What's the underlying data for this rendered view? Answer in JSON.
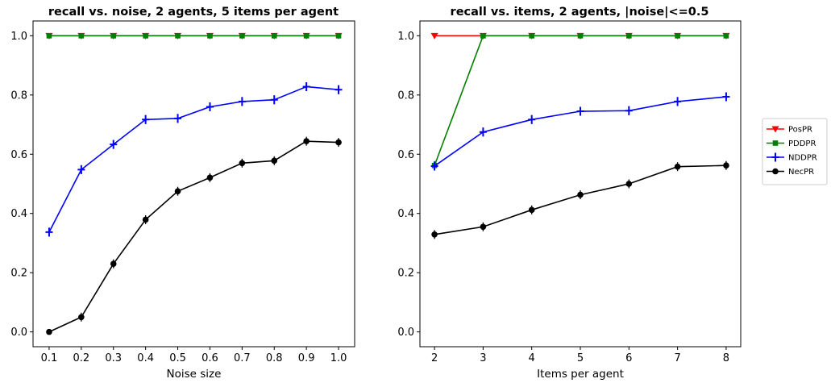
{
  "legend": {
    "entries": [
      {
        "label": "PosPR",
        "color": "#ff0000",
        "marker": "tri_down"
      },
      {
        "label": "PDDPR",
        "color": "#008000",
        "marker": "square"
      },
      {
        "label": "NDDPR",
        "color": "#0000ff",
        "marker": "plus"
      },
      {
        "label": "NecPR",
        "color": "#000000",
        "marker": "circle"
      }
    ]
  },
  "chart_data": [
    {
      "type": "line",
      "title": "recall vs. noise, 2 agents, 5 items per agent",
      "xlabel": "Noise size",
      "ylabel": "",
      "x": [
        0.1,
        0.2,
        0.3,
        0.4,
        0.5,
        0.6,
        0.7,
        0.8,
        0.9,
        1.0
      ],
      "x_ticks": [
        "0.1",
        "0.2",
        "0.3",
        "0.4",
        "0.5",
        "0.6",
        "0.7",
        "0.8",
        "0.9",
        "1.0"
      ],
      "y_ticks": [
        "0.0",
        "0.2",
        "0.4",
        "0.6",
        "0.8",
        "1.0"
      ],
      "xlim": [
        0.05,
        1.05
      ],
      "ylim": [
        -0.05,
        1.05
      ],
      "series": [
        {
          "name": "PosPR",
          "color": "#ff0000",
          "marker": "tri_down",
          "values": [
            1.0,
            1.0,
            1.0,
            1.0,
            1.0,
            1.0,
            1.0,
            1.0,
            1.0,
            1.0
          ]
        },
        {
          "name": "PDDPR",
          "color": "#008000",
          "marker": "square",
          "values": [
            1.0,
            1.0,
            1.0,
            1.0,
            1.0,
            1.0,
            1.0,
            1.0,
            1.0,
            1.0
          ]
        },
        {
          "name": "NDDPR",
          "color": "#0000ff",
          "marker": "plus",
          "values": [
            0.337,
            0.548,
            0.633,
            0.717,
            0.721,
            0.76,
            0.778,
            0.784,
            0.828,
            0.818
          ]
        },
        {
          "name": "NecPR",
          "color": "#000000",
          "marker": "circle",
          "values": [
            0.0,
            0.05,
            0.23,
            0.379,
            0.475,
            0.521,
            0.57,
            0.578,
            0.644,
            0.64
          ]
        }
      ]
    },
    {
      "type": "line",
      "title": "recall vs. items, 2 agents, |noise|<=0.5",
      "xlabel": "Items per agent",
      "ylabel": "",
      "x": [
        2,
        3,
        4,
        5,
        6,
        7,
        8
      ],
      "x_ticks": [
        "2",
        "3",
        "4",
        "5",
        "6",
        "7",
        "8"
      ],
      "y_ticks": [
        "0.0",
        "0.2",
        "0.4",
        "0.6",
        "0.8",
        "1.0"
      ],
      "xlim": [
        1.7,
        8.3
      ],
      "ylim": [
        -0.05,
        1.05
      ],
      "series": [
        {
          "name": "PosPR",
          "color": "#ff0000",
          "marker": "tri_down",
          "values": [
            1.0,
            1.0,
            1.0,
            1.0,
            1.0,
            1.0,
            1.0
          ]
        },
        {
          "name": "PDDPR",
          "color": "#008000",
          "marker": "square",
          "values": [
            0.562,
            1.0,
            1.0,
            1.0,
            1.0,
            1.0,
            1.0
          ]
        },
        {
          "name": "NDDPR",
          "color": "#0000ff",
          "marker": "plus",
          "values": [
            0.56,
            0.675,
            0.717,
            0.745,
            0.747,
            0.778,
            0.794
          ]
        },
        {
          "name": "NecPR",
          "color": "#000000",
          "marker": "circle",
          "values": [
            0.329,
            0.355,
            0.412,
            0.463,
            0.5,
            0.558,
            0.562
          ]
        }
      ]
    }
  ]
}
